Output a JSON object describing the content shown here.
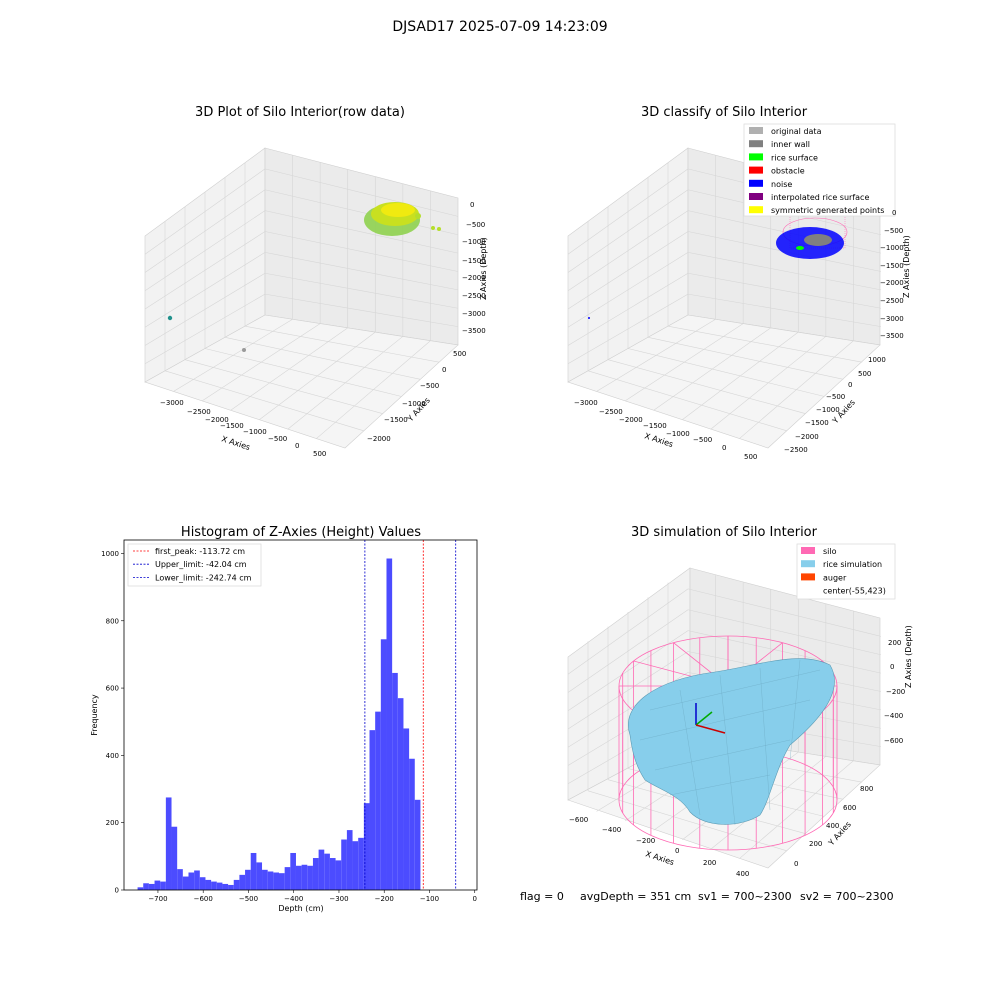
{
  "suptitle": "DJSAD17 2025-07-09 14:23:09",
  "colors": {
    "hist_bar": "#4c4cff",
    "peak_line": "#ff0000",
    "limit_line": "#0000cc",
    "silo": "#ff69b4",
    "rice": "#87ceeb",
    "auger": "#ff4500",
    "noise": "#0000ff",
    "rice_surface": "#00ff00"
  },
  "chart_data": [
    {
      "type": "scatter",
      "title": "3D Plot of Silo Interior(row data)",
      "xlabel": "X Axies",
      "ylabel": "Y Axies",
      "zlabel": "Z Axies (Depth)",
      "x_ticks": [
        "−3000",
        "−2500",
        "−2000",
        "−1500",
        "−1000",
        "−500",
        "0",
        "500"
      ],
      "y_ticks": [
        "500",
        "0",
        "−500",
        "−1000",
        "−1500",
        "−2000"
      ],
      "z_ticks": [
        "0",
        "−500",
        "−1000",
        "−1500",
        "−2000",
        "−2500",
        "−3000",
        "−3500"
      ]
    },
    {
      "type": "scatter",
      "title": "3D classify of Silo Interior",
      "xlabel": "X Axies",
      "ylabel": "Y Axies",
      "zlabel": "Z Axies (Depth)",
      "x_ticks": [
        "−3000",
        "−2500",
        "−2000",
        "−1500",
        "−1000",
        "−500",
        "0",
        "500"
      ],
      "y_ticks": [
        "1000",
        "500",
        "0",
        "−500",
        "−1000",
        "−1500",
        "−2000",
        "−2500"
      ],
      "z_ticks": [
        "0",
        "−500",
        "−1000",
        "−1500",
        "−2000",
        "−2500",
        "−3000",
        "−3500"
      ],
      "legend": [
        {
          "label": "original data",
          "color": "#b0b0b0"
        },
        {
          "label": "inner wall",
          "color": "#808080"
        },
        {
          "label": "rice surface",
          "color": "#00ff00"
        },
        {
          "label": "obstacle",
          "color": "#ff0000"
        },
        {
          "label": "noise",
          "color": "#0000ff"
        },
        {
          "label": "interpolated rice surface",
          "color": "#800080"
        },
        {
          "label": "symmetric generated points",
          "color": "#ffff00"
        }
      ]
    },
    {
      "type": "bar",
      "title": "Histogram of Z-Axies (Height) Values",
      "xlabel": "Depth (cm)",
      "ylabel": "Frequency",
      "xlim": [
        -775,
        5
      ],
      "ylim": [
        0,
        1040
      ],
      "x_ticks": [
        -700,
        -600,
        -500,
        -400,
        -300,
        -200,
        -100,
        0
      ],
      "x_tick_labels": [
        "−700",
        "−600",
        "−500",
        "−400",
        "−300",
        "−200",
        "−100",
        "0"
      ],
      "y_ticks": [
        0,
        200,
        400,
        600,
        800,
        1000
      ],
      "bin_start": -745,
      "bin_width": 12.5,
      "values": [
        8,
        20,
        18,
        28,
        25,
        275,
        188,
        62,
        40,
        52,
        58,
        38,
        30,
        25,
        22,
        18,
        15,
        30,
        45,
        60,
        110,
        82,
        60,
        55,
        52,
        50,
        68,
        110,
        72,
        75,
        72,
        95,
        120,
        108,
        95,
        88,
        150,
        178,
        145,
        155,
        258,
        475,
        530,
        745,
        985,
        645,
        570,
        480,
        390,
        268
      ],
      "vlines": [
        {
          "label": "first_peak: -113.72 cm",
          "x": -113.72,
          "color": "#ff0000"
        },
        {
          "label": "Upper_limit: -42.04 cm",
          "x": -42.04,
          "color": "#0000cc"
        },
        {
          "label": "Lower_limit: -242.74 cm",
          "x": -242.74,
          "color": "#0000cc"
        }
      ]
    },
    {
      "type": "surface",
      "title": "3D simulation of Silo Interior",
      "xlabel": "X Axies",
      "ylabel": "Y Axies",
      "zlabel": "Z Axies (Depth)",
      "x_ticks": [
        "−600",
        "−400",
        "−200",
        "0",
        "200",
        "400"
      ],
      "y_ticks": [
        "800",
        "600",
        "400",
        "200",
        "0"
      ],
      "z_ticks": [
        "200",
        "0",
        "−200",
        "−400",
        "−600"
      ],
      "legend": [
        {
          "label": "silo",
          "color": "#ff69b4"
        },
        {
          "label": "rice simulation",
          "color": "#87ceeb"
        },
        {
          "label": "auger",
          "color": "#ff4500"
        },
        {
          "label": "center(-55,423)",
          "color": ""
        }
      ]
    }
  ],
  "status": {
    "flag": "flag = 0",
    "avg_depth": "avgDepth = 351 cm",
    "sv1": "sv1 = 700~2300",
    "sv2": "sv2 = 700~2300"
  }
}
